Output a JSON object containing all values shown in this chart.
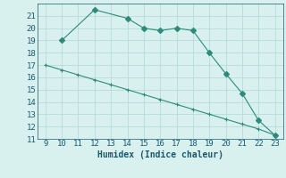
{
  "xlabel": "Humidex (Indice chaleur)",
  "line1_x": [
    10,
    12,
    14,
    15,
    16,
    17,
    18,
    19,
    20,
    21,
    22,
    23
  ],
  "line1_y": [
    19.0,
    21.5,
    20.8,
    20.0,
    19.8,
    20.0,
    19.8,
    18.0,
    16.3,
    14.7,
    12.5,
    11.3
  ],
  "line2_x": [
    9,
    10,
    11,
    12,
    13,
    14,
    15,
    16,
    17,
    18,
    19,
    20,
    21,
    22,
    23
  ],
  "line2_y": [
    17.0,
    16.6,
    16.2,
    15.8,
    15.4,
    15.0,
    14.6,
    14.2,
    13.8,
    13.4,
    13.0,
    12.6,
    12.2,
    11.8,
    11.3
  ],
  "line_color": "#2e8b7a",
  "bg_color": "#d8f0ee",
  "grid_color": "#b0d8d4",
  "text_color": "#1a5a6e",
  "xlim": [
    8.5,
    23.5
  ],
  "ylim": [
    11,
    22
  ],
  "xticks": [
    9,
    10,
    11,
    12,
    13,
    14,
    15,
    16,
    17,
    18,
    19,
    20,
    21,
    22,
    23
  ],
  "yticks": [
    11,
    12,
    13,
    14,
    15,
    16,
    17,
    18,
    19,
    20,
    21
  ],
  "tick_fontsize": 6.5,
  "xlabel_fontsize": 7.0
}
